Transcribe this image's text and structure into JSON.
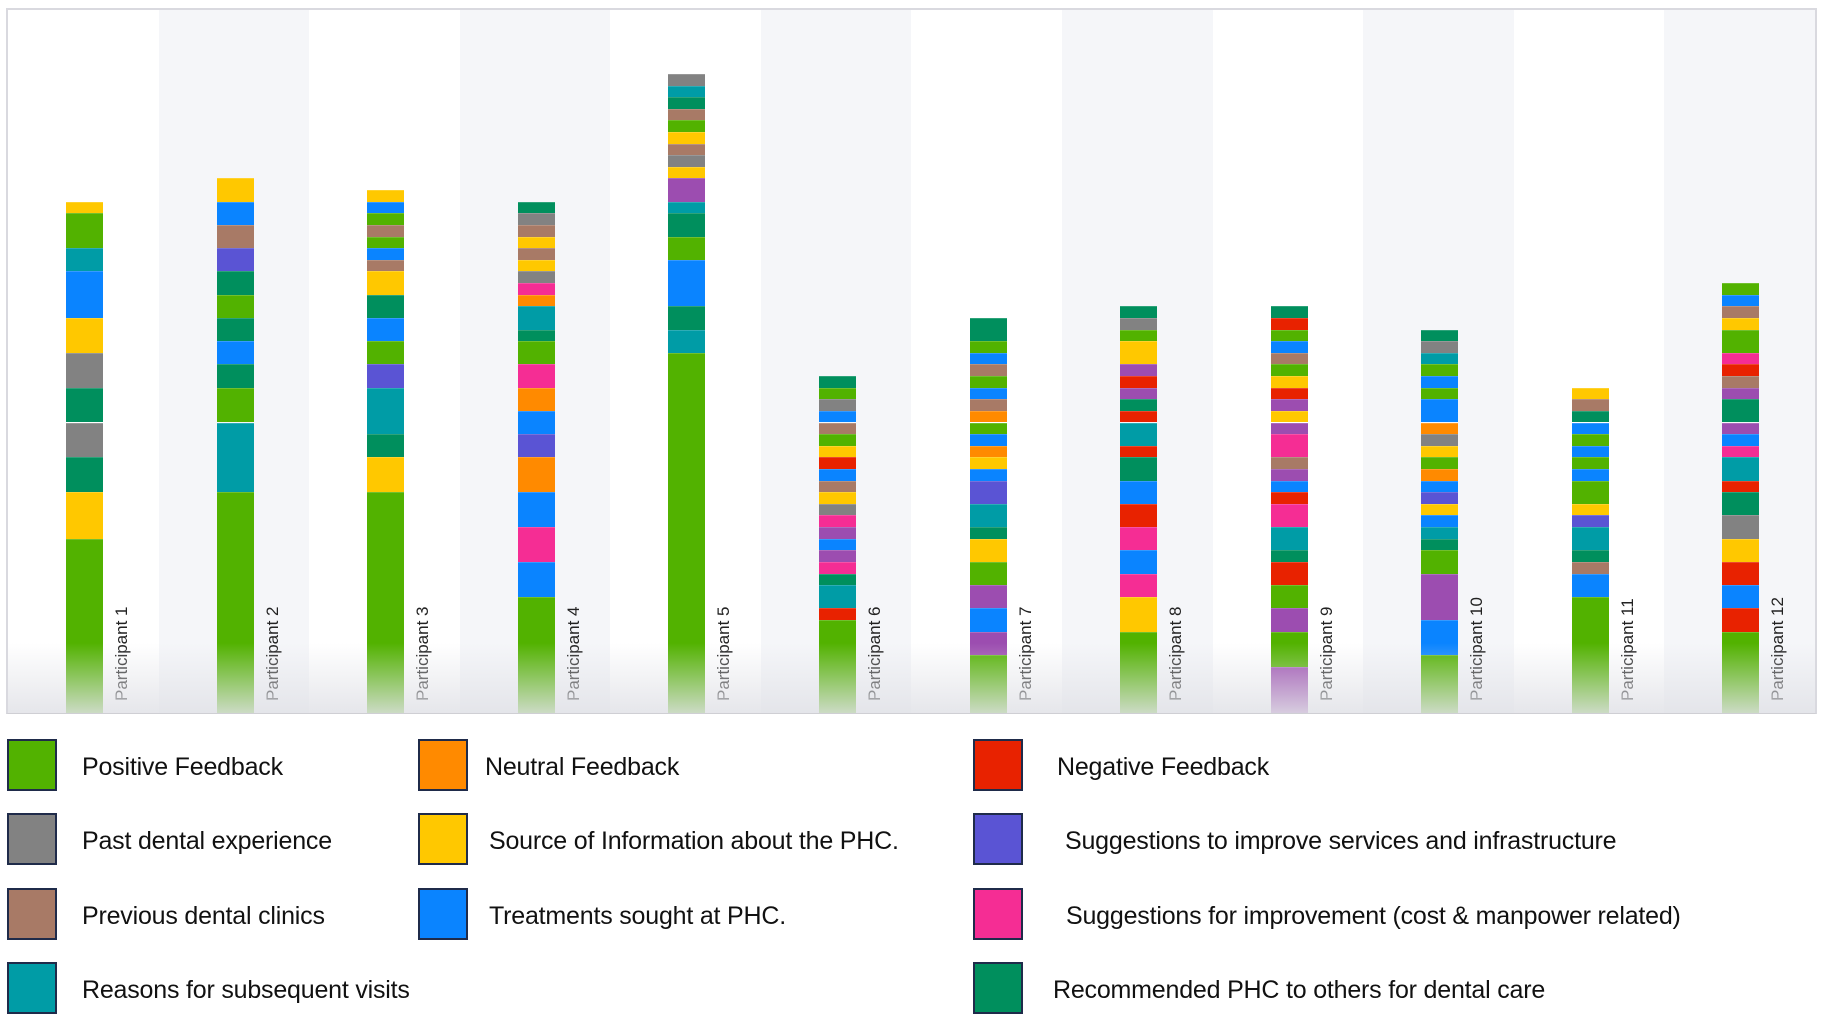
{
  "chart_data": {
    "type": "bar",
    "stacked": true,
    "title": "",
    "xlabel": "",
    "ylabel": "",
    "ylim": [
      0,
      55
    ],
    "grid": false,
    "legend_position": "bottom",
    "categories": [
      "Participant 1",
      "Participant 2",
      "Participant 3",
      "Participant 4",
      "Participant 5",
      "Participant 6",
      "Participant 7",
      "Participant 8",
      "Participant 9",
      "Participant 10",
      "Participant 11",
      "Participant 12"
    ],
    "legend": [
      {
        "key": "pos",
        "label": "Positive Feedback",
        "color": "#52b200"
      },
      {
        "key": "neu",
        "label": "Neutral Feedback",
        "color": "#ff8a00"
      },
      {
        "key": "neg",
        "label": "Negative Feedback",
        "color": "#e82200"
      },
      {
        "key": "past",
        "label": "Past dental experience",
        "color": "#828282"
      },
      {
        "key": "src",
        "label": "Source of Information about the PHC.",
        "color": "#ffc800"
      },
      {
        "key": "sug",
        "label": "Suggestions to improve services and infrastructure",
        "color": "#5a54d4"
      },
      {
        "key": "prev",
        "label": "Previous dental clinics",
        "color": "#a87a66"
      },
      {
        "key": "trt",
        "label": "Treatments sought at PHC.",
        "color": "#0a84ff"
      },
      {
        "key": "cost",
        "label": "Suggestions for improvement (cost & manpower related)",
        "color": "#f52d94"
      },
      {
        "key": "rsn",
        "label": "Reasons for subsequent visits",
        "color": "#009ca6"
      },
      {
        "key": "rec",
        "label": "Recommended PHC to others for dental care",
        "color": "#008f5d"
      }
    ],
    "extra_colors": {
      "other_purple": "#9c4db0"
    },
    "stacks_bottom_to_top": [
      [
        [
          "pos",
          15
        ],
        [
          "src",
          4
        ],
        [
          "rec",
          3
        ],
        [
          "past",
          3
        ],
        [
          "rec",
          3
        ],
        [
          "past",
          3
        ],
        [
          "src",
          3
        ],
        [
          "trt",
          4
        ],
        [
          "rsn",
          2
        ],
        [
          "pos",
          3
        ],
        [
          "src",
          1
        ]
      ],
      [
        [
          "pos",
          19
        ],
        [
          "rsn",
          6
        ],
        [
          "pos",
          3
        ],
        [
          "rec",
          2
        ],
        [
          "trt",
          2
        ],
        [
          "rec",
          2
        ],
        [
          "pos",
          2
        ],
        [
          "rec",
          2
        ],
        [
          "sug",
          2
        ],
        [
          "prev",
          2
        ],
        [
          "trt",
          2
        ],
        [
          "src",
          2
        ]
      ],
      [
        [
          "pos",
          19
        ],
        [
          "src",
          3
        ],
        [
          "rec",
          2
        ],
        [
          "rsn",
          4
        ],
        [
          "sug",
          2
        ],
        [
          "pos",
          2
        ],
        [
          "trt",
          2
        ],
        [
          "rec",
          2
        ],
        [
          "src",
          2
        ],
        [
          "prev",
          1
        ],
        [
          "trt",
          1
        ],
        [
          "pos",
          1
        ],
        [
          "prev",
          1
        ],
        [
          "pos",
          1
        ],
        [
          "trt",
          1
        ],
        [
          "src",
          1
        ]
      ],
      [
        [
          "pos",
          10
        ],
        [
          "trt",
          3
        ],
        [
          "cost",
          3
        ],
        [
          "trt",
          3
        ],
        [
          "neu",
          3
        ],
        [
          "sug",
          2
        ],
        [
          "trt",
          2
        ],
        [
          "neu",
          2
        ],
        [
          "cost",
          2
        ],
        [
          "pos",
          2
        ],
        [
          "rec",
          1
        ],
        [
          "rsn",
          2
        ],
        [
          "neu",
          1
        ],
        [
          "cost",
          1
        ],
        [
          "past",
          1
        ],
        [
          "src",
          1
        ],
        [
          "prev",
          1
        ],
        [
          "src",
          1
        ],
        [
          "prev",
          1
        ],
        [
          "past",
          1
        ],
        [
          "rec",
          1
        ]
      ],
      [
        [
          "pos",
          31
        ],
        [
          "rsn",
          2
        ],
        [
          "rec",
          2
        ],
        [
          "trt",
          4
        ],
        [
          "pos",
          2
        ],
        [
          "rec",
          2
        ],
        [
          "rsn",
          1
        ],
        [
          "other_purple",
          2
        ],
        [
          "src",
          1
        ],
        [
          "past",
          1
        ],
        [
          "prev",
          1
        ],
        [
          "src",
          1
        ],
        [
          "pos",
          1
        ],
        [
          "prev",
          1
        ],
        [
          "rec",
          1
        ],
        [
          "rsn",
          1
        ],
        [
          "past",
          1
        ]
      ],
      [
        [
          "pos",
          8
        ],
        [
          "neg",
          1
        ],
        [
          "rsn",
          2
        ],
        [
          "rec",
          1
        ],
        [
          "cost",
          1
        ],
        [
          "other_purple",
          1
        ],
        [
          "trt",
          1
        ],
        [
          "other_purple",
          1
        ],
        [
          "cost",
          1
        ],
        [
          "past",
          1
        ],
        [
          "src",
          1
        ],
        [
          "prev",
          1
        ],
        [
          "trt",
          1
        ],
        [
          "neg",
          1
        ],
        [
          "src",
          1
        ],
        [
          "pos",
          1
        ],
        [
          "prev",
          1
        ],
        [
          "trt",
          1
        ],
        [
          "past",
          1
        ],
        [
          "pos",
          1
        ],
        [
          "rec",
          1
        ]
      ],
      [
        [
          "pos",
          5
        ],
        [
          "other_purple",
          2
        ],
        [
          "trt",
          2
        ],
        [
          "other_purple",
          2
        ],
        [
          "pos",
          2
        ],
        [
          "src",
          2
        ],
        [
          "rec",
          1
        ],
        [
          "rsn",
          2
        ],
        [
          "sug",
          2
        ],
        [
          "trt",
          1
        ],
        [
          "src",
          1
        ],
        [
          "neu",
          1
        ],
        [
          "trt",
          1
        ],
        [
          "pos",
          1
        ],
        [
          "neu",
          1
        ],
        [
          "prev",
          1
        ],
        [
          "trt",
          1
        ],
        [
          "pos",
          1
        ],
        [
          "prev",
          1
        ],
        [
          "trt",
          1
        ],
        [
          "pos",
          1
        ],
        [
          "rec",
          2
        ]
      ],
      [
        [
          "pos",
          7
        ],
        [
          "src",
          3
        ],
        [
          "cost",
          2
        ],
        [
          "trt",
          2
        ],
        [
          "cost",
          2
        ],
        [
          "neg",
          2
        ],
        [
          "trt",
          2
        ],
        [
          "rec",
          2
        ],
        [
          "neg",
          1
        ],
        [
          "rsn",
          2
        ],
        [
          "neg",
          1
        ],
        [
          "rec",
          1
        ],
        [
          "other_purple",
          1
        ],
        [
          "neg",
          1
        ],
        [
          "other_purple",
          1
        ],
        [
          "src",
          2
        ],
        [
          "pos",
          1
        ],
        [
          "past",
          1
        ],
        [
          "rec",
          1
        ]
      ],
      [
        [
          "other_purple",
          4
        ],
        [
          "pos",
          3
        ],
        [
          "other_purple",
          2
        ],
        [
          "pos",
          2
        ],
        [
          "neg",
          2
        ],
        [
          "rec",
          1
        ],
        [
          "rsn",
          2
        ],
        [
          "cost",
          2
        ],
        [
          "neg",
          1
        ],
        [
          "trt",
          1
        ],
        [
          "other_purple",
          1
        ],
        [
          "prev",
          1
        ],
        [
          "cost",
          2
        ],
        [
          "other_purple",
          1
        ],
        [
          "src",
          1
        ],
        [
          "other_purple",
          1
        ],
        [
          "neg",
          1
        ],
        [
          "src",
          1
        ],
        [
          "pos",
          1
        ],
        [
          "prev",
          1
        ],
        [
          "trt",
          1
        ],
        [
          "pos",
          1
        ],
        [
          "neg",
          1
        ],
        [
          "rec",
          1
        ]
      ],
      [
        [
          "pos",
          5
        ],
        [
          "trt",
          3
        ],
        [
          "other_purple",
          4
        ],
        [
          "pos",
          2
        ],
        [
          "rec",
          1
        ],
        [
          "rsn",
          1
        ],
        [
          "trt",
          1
        ],
        [
          "src",
          1
        ],
        [
          "sug",
          1
        ],
        [
          "trt",
          1
        ],
        [
          "neu",
          1
        ],
        [
          "pos",
          1
        ],
        [
          "src",
          1
        ],
        [
          "past",
          1
        ],
        [
          "neu",
          1
        ],
        [
          "trt",
          2
        ],
        [
          "pos",
          1
        ],
        [
          "trt",
          1
        ],
        [
          "pos",
          1
        ],
        [
          "rsn",
          1
        ],
        [
          "past",
          1
        ],
        [
          "rec",
          1
        ]
      ],
      [
        [
          "pos",
          10
        ],
        [
          "trt",
          2
        ],
        [
          "prev",
          1
        ],
        [
          "rec",
          1
        ],
        [
          "rsn",
          2
        ],
        [
          "sug",
          1
        ],
        [
          "src",
          1
        ],
        [
          "pos",
          2
        ],
        [
          "trt",
          1
        ],
        [
          "pos",
          1
        ],
        [
          "trt",
          1
        ],
        [
          "pos",
          1
        ],
        [
          "trt",
          1
        ],
        [
          "rec",
          1
        ],
        [
          "prev",
          1
        ],
        [
          "src",
          1
        ]
      ],
      [
        [
          "pos",
          7
        ],
        [
          "neg",
          2
        ],
        [
          "trt",
          2
        ],
        [
          "neg",
          2
        ],
        [
          "src",
          2
        ],
        [
          "past",
          2
        ],
        [
          "rec",
          2
        ],
        [
          "neg",
          1
        ],
        [
          "rsn",
          2
        ],
        [
          "cost",
          1
        ],
        [
          "trt",
          1
        ],
        [
          "other_purple",
          1
        ],
        [
          "rec",
          2
        ],
        [
          "other_purple",
          1
        ],
        [
          "prev",
          1
        ],
        [
          "neg",
          1
        ],
        [
          "cost",
          1
        ],
        [
          "pos",
          2
        ],
        [
          "src",
          1
        ],
        [
          "prev",
          1
        ],
        [
          "trt",
          1
        ],
        [
          "pos",
          1
        ]
      ]
    ],
    "totals": [
      44,
      46,
      45,
      44,
      55,
      29,
      34,
      35,
      35,
      33,
      28,
      37
    ]
  }
}
